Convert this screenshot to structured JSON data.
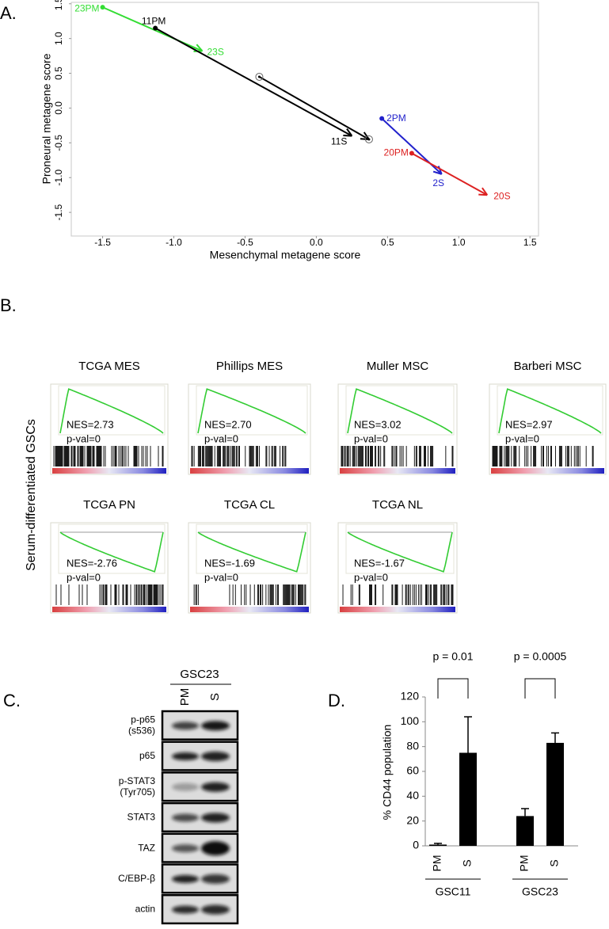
{
  "panel_labels": [
    "A.",
    "B.",
    "C.",
    "D."
  ],
  "chart_data": [
    {
      "type": "arrow",
      "xlabel": "Mesenchymal metagene score",
      "ylabel": "Proneural metagene score",
      "xlim": [
        -1.72,
        1.56
      ],
      "ylim": [
        -1.84,
        1.52
      ],
      "xticks": [
        -1.5,
        {
          "value": -1,
          "label": "-1.0"
        },
        -0.5,
        {
          "value": 0,
          "label": "0.0"
        },
        0.5,
        {
          "value": 1,
          "label": "1.0"
        },
        1.5
      ],
      "yticks": [
        1.5,
        {
          "value": 1,
          "label": "1.0"
        },
        0.5,
        {
          "value": 0,
          "label": "0.0"
        },
        -0.5,
        {
          "value": -1,
          "label": "-1.0"
        },
        -1.5
      ],
      "series": [
        {
          "labels": [
            "23PM",
            "23S"
          ],
          "color": "#33dd33",
          "x": [
            -1.5,
            -0.8
          ],
          "values": [
            1.45,
            0.82
          ]
        },
        {
          "labels": [
            "11PM",
            "11S"
          ],
          "color": "#000000",
          "x": [
            -1.13,
            0.25
          ],
          "values": [
            1.15,
            -0.4
          ]
        },
        {
          "color": "#000000",
          "x": [
            -0.4,
            0.37
          ],
          "values": [
            0.45,
            -0.45
          ]
        },
        {
          "labels": [
            "2PM",
            "2S"
          ],
          "color": "#2222cc",
          "x": [
            0.46,
            0.88
          ],
          "values": [
            -0.15,
            -0.95
          ]
        },
        {
          "labels": [
            "20PM",
            "20S"
          ],
          "color": "#dd2222",
          "x": [
            0.67,
            1.2
          ],
          "values": [
            -0.65,
            -1.25
          ]
        }
      ]
    },
    {
      "type": "bar",
      "ylabel": "% CD44 population",
      "categories": [
        "PM",
        "S",
        "PM",
        "S"
      ],
      "groups": [
        "GSC11",
        "GSC23"
      ],
      "values": [
        1,
        75,
        24,
        83
      ],
      "errors": [
        1,
        29,
        6,
        8
      ],
      "color": "#000000",
      "ylim": [
        0,
        120
      ],
      "yticks": [
        0,
        20,
        40,
        60,
        80,
        100,
        120
      ],
      "annotations": [
        "p = 0.01",
        "p = 0.0005"
      ]
    }
  ],
  "gsea": {
    "ylabel": "Serum-differentiated GSCs",
    "panels": [
      {
        "title": "TCGA MES",
        "nes": "NES=2.73",
        "pval": "p-val=0"
      },
      {
        "title": "Phillips MES",
        "nes": "NES=2.70",
        "pval": "p-val=0"
      },
      {
        "title": "Muller MSC",
        "nes": "NES=3.02",
        "pval": "p-val=0"
      },
      {
        "title": "Barberi MSC",
        "nes": "NES=2.97",
        "pval": "p-val=0"
      },
      {
        "title": "TCGA PN",
        "nes": "NES=-2.76",
        "pval": "p-val=0"
      },
      {
        "title": "TCGA CL",
        "nes": "NES=-1.69",
        "pval": "p-val=0"
      },
      {
        "title": "TCGA NL",
        "nes": "NES=-1.67",
        "pval": "p-val=0"
      }
    ]
  },
  "western": {
    "cell_line": "GSC23",
    "lanes": [
      "PM",
      "S"
    ],
    "proteins": [
      [
        "p-p65",
        "(s536)"
      ],
      [
        "p65"
      ],
      [
        "p-STAT3",
        "(Tyr705)"
      ],
      [
        "STAT3"
      ],
      [
        "TAZ"
      ],
      [
        "C/EBP-β"
      ],
      [
        "actin"
      ]
    ]
  }
}
